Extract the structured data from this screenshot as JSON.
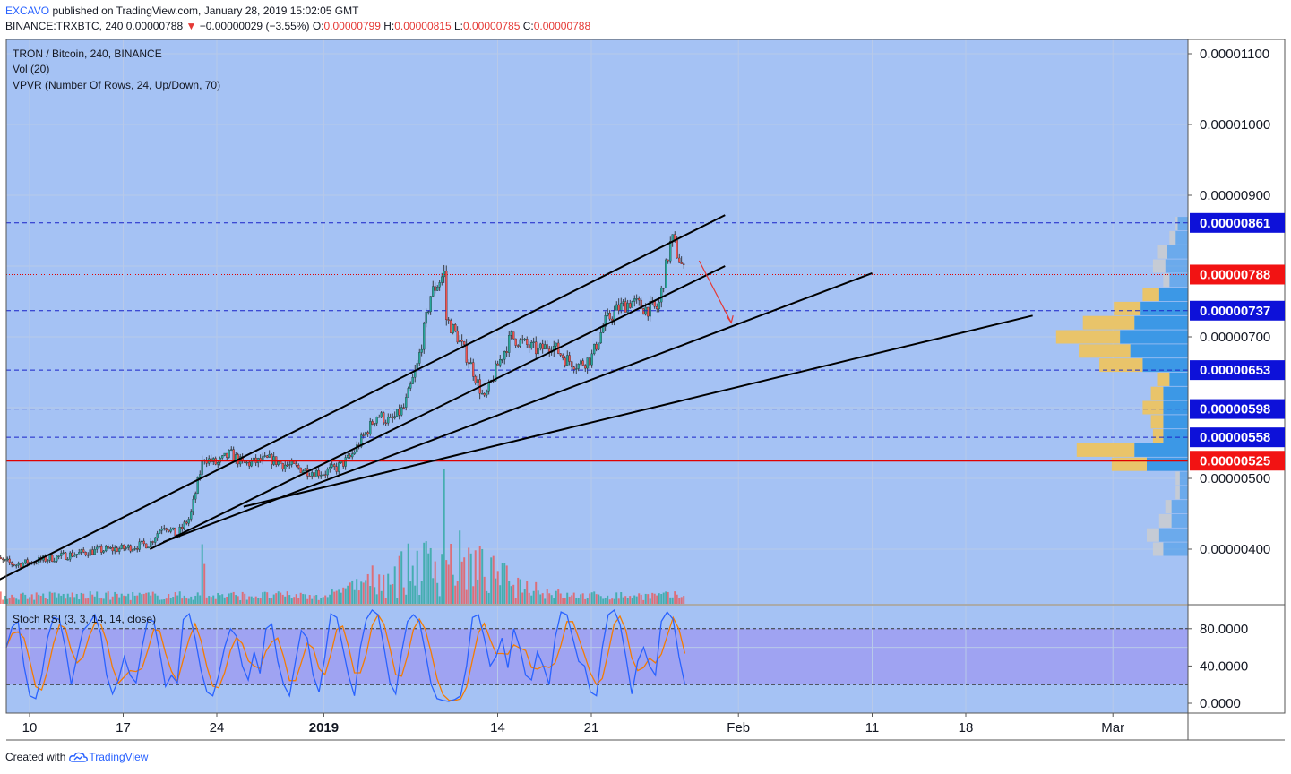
{
  "header": {
    "user": "EXCAVO",
    "published_text": "published on TradingView.com, January 28, 2019 15:02:05 GMT",
    "symbol": "BINANCE:TRXBTC, 240",
    "last": "0.00000788",
    "change": "−0.00000029 (−3.55%)",
    "o_label": "O:",
    "o": "0.00000799",
    "h_label": "H:",
    "h": "0.00000815",
    "l_label": "L:",
    "l": "0.00000785",
    "c_label": "C:",
    "c": "0.00000788"
  },
  "legend": {
    "title": "TRON / Bitcoin, 240, BINANCE",
    "vol": "Vol (20)",
    "vpvr": "VPVR (Number Of Rows, 24, Up/Down, 70)",
    "stoch": "Stoch RSI (3, 3, 14, 14, close)"
  },
  "footer": {
    "created": "Created with",
    "brand": "TradingView"
  },
  "colors": {
    "background": "#a5c2f4",
    "rsi_band": "#9d9ef1",
    "up": "#26a69a",
    "down": "#ef5350",
    "support_line": "#e00000",
    "level_line": "#1a23c8",
    "trend_line": "#000000",
    "badge_blue": "#0d11d9",
    "badge_red": "#f21313",
    "vpvr_up": "#3c98e6",
    "vpvr_down": "#e9c46a",
    "vpvr_inactive": "#c9ccd1",
    "k_line": "#2962ff",
    "d_line": "#f57c00"
  },
  "chart_data": {
    "type": "candlestick",
    "price_axis": {
      "ticks": [
        {
          "value": 1.1e-05,
          "label": "0.00001100"
        },
        {
          "value": 1e-05,
          "label": "0.00001000"
        },
        {
          "value": 9e-06,
          "label": "0.00000900"
        },
        {
          "value": 7e-06,
          "label": "0.00000700"
        },
        {
          "value": 5e-06,
          "label": "0.00000500"
        },
        {
          "value": 4e-06,
          "label": "0.00000400"
        }
      ]
    },
    "time_axis": {
      "ticks": [
        {
          "date": "2018-12-10",
          "label": "10"
        },
        {
          "date": "2018-12-17",
          "label": "17"
        },
        {
          "date": "2018-12-24",
          "label": "24"
        },
        {
          "date": "2019-01-01",
          "label": "2019",
          "bold": true
        },
        {
          "date": "2019-01-14",
          "label": "14"
        },
        {
          "date": "2019-01-21",
          "label": "21"
        },
        {
          "date": "2019-02-01",
          "label": "Feb"
        },
        {
          "date": "2019-02-11",
          "label": "11"
        },
        {
          "date": "2019-02-18",
          "label": "18"
        },
        {
          "date": "2019-03-01",
          "label": "Mar"
        }
      ]
    },
    "levels": [
      {
        "value": 8.61e-06,
        "label": "0.00000861",
        "style": "dashed",
        "badge": "blue"
      },
      {
        "value": 7.37e-06,
        "label": "0.00000737",
        "style": "dashed",
        "badge": "blue"
      },
      {
        "value": 6.53e-06,
        "label": "0.00000653",
        "style": "dashed",
        "badge": "blue"
      },
      {
        "value": 5.98e-06,
        "label": "0.00000598",
        "style": "dashed",
        "badge": "blue"
      },
      {
        "value": 5.58e-06,
        "label": "0.00000558",
        "style": "dashed",
        "badge": "blue"
      },
      {
        "value": 5.25e-06,
        "label": "0.00000525",
        "style": "solid",
        "badge": "red"
      },
      {
        "value": 7.88e-06,
        "label": "0.00000788",
        "style": "dotted",
        "badge": "red"
      }
    ],
    "trendlines": [
      {
        "from": [
          "2018-12-07",
          3.5e-06
        ],
        "to": [
          "2019-01-31",
          8.72e-06
        ]
      },
      {
        "from": [
          "2018-12-19",
          4e-06
        ],
        "to": [
          "2019-01-31",
          8e-06
        ]
      },
      {
        "from": [
          "2018-12-20",
          4.1e-06
        ],
        "to": [
          "2019-02-11",
          7.9e-06
        ]
      },
      {
        "from": [
          "2018-12-26",
          4.6e-06
        ],
        "to": [
          "2019-02-23",
          7.3e-06
        ]
      }
    ],
    "arrow": {
      "from": [
        "2019-01-30",
        8e-06
      ],
      "to": [
        "2019-02-01",
        7.2e-06
      ]
    },
    "close_path": [
      [
        "2018-12-07",
        3.88e-06
      ],
      [
        "2018-12-09",
        3.78e-06
      ],
      [
        "2018-12-11",
        3.85e-06
      ],
      [
        "2018-12-13",
        3.92e-06
      ],
      [
        "2018-12-15",
        3.98e-06
      ],
      [
        "2018-12-17",
        4.01e-06
      ],
      [
        "2018-12-19",
        4.08e-06
      ],
      [
        "2018-12-20",
        4.35e-06
      ],
      [
        "2018-12-21",
        4.2e-06
      ],
      [
        "2018-12-22",
        4.45e-06
      ],
      [
        "2018-12-23",
        5.3e-06
      ],
      [
        "2018-12-24",
        5.2e-06
      ],
      [
        "2018-12-25",
        5.35e-06
      ],
      [
        "2018-12-26",
        5.2e-06
      ],
      [
        "2018-12-28",
        5.27e-06
      ],
      [
        "2018-12-29",
        5.2e-06
      ],
      [
        "2018-12-31",
        5.1e-06
      ],
      [
        "2019-01-01",
        5.08e-06
      ],
      [
        "2019-01-02",
        5.15e-06
      ],
      [
        "2019-01-03",
        5.3e-06
      ],
      [
        "2019-01-04",
        5.6e-06
      ],
      [
        "2019-01-05",
        5.9e-06
      ],
      [
        "2019-01-06",
        5.8e-06
      ],
      [
        "2019-01-07",
        6e-06
      ],
      [
        "2019-01-08",
        6.6e-06
      ],
      [
        "2019-01-09",
        7.6e-06
      ],
      [
        "2019-01-10",
        7.9e-06
      ],
      [
        "2019-01-10",
        7.3e-06
      ],
      [
        "2019-01-11",
        7e-06
      ],
      [
        "2019-01-12",
        6.6e-06
      ],
      [
        "2019-01-13",
        6.1e-06
      ],
      [
        "2019-01-14",
        6.6e-06
      ],
      [
        "2019-01-15",
        7e-06
      ],
      [
        "2019-01-16",
        6.9e-06
      ],
      [
        "2019-01-17",
        6.8e-06
      ],
      [
        "2019-01-18",
        6.9e-06
      ],
      [
        "2019-01-19",
        6.7e-06
      ],
      [
        "2019-01-20",
        6.6e-06
      ],
      [
        "2019-01-21",
        6.7e-06
      ],
      [
        "2019-01-22",
        7.2e-06
      ],
      [
        "2019-01-23",
        7.4e-06
      ],
      [
        "2019-01-24",
        7.5e-06
      ],
      [
        "2019-01-25",
        7.4e-06
      ],
      [
        "2019-01-26",
        7.4e-06
      ],
      [
        "2019-01-27",
        8.4e-06
      ],
      [
        "2019-01-28",
        7.88e-06
      ]
    ],
    "volume": {
      "peak_date": "2019-01-10",
      "peak_relative": 1.0
    },
    "vpvr_rows": [
      {
        "price": 8.6e-06,
        "up": 0.05,
        "down": 0.01
      },
      {
        "price": 8.4e-06,
        "up": 0.06,
        "down": 0.03
      },
      {
        "price": 8.2e-06,
        "up": 0.1,
        "down": 0.05
      },
      {
        "price": 8e-06,
        "up": 0.11,
        "down": 0.06
      },
      {
        "price": 7.8e-06,
        "up": 0.09,
        "down": 0.03
      },
      {
        "price": 7.6e-06,
        "up": 0.14,
        "down": 0.08
      },
      {
        "price": 7.4e-06,
        "up": 0.23,
        "down": 0.13
      },
      {
        "price": 7.2e-06,
        "up": 0.26,
        "down": 0.25
      },
      {
        "price": 7e-06,
        "up": 0.33,
        "down": 0.31
      },
      {
        "price": 6.8e-06,
        "up": 0.28,
        "down": 0.25
      },
      {
        "price": 6.6e-06,
        "up": 0.22,
        "down": 0.21
      },
      {
        "price": 6.4e-06,
        "up": 0.09,
        "down": 0.06
      },
      {
        "price": 6.2e-06,
        "up": 0.12,
        "down": 0.06
      },
      {
        "price": 6e-06,
        "up": 0.12,
        "down": 0.1
      },
      {
        "price": 5.8e-06,
        "up": 0.12,
        "down": 0.06
      },
      {
        "price": 5.6e-06,
        "up": 0.12,
        "down": 0.05
      },
      {
        "price": 5.4e-06,
        "up": 0.26,
        "down": 0.28
      },
      {
        "price": 5.2e-06,
        "up": 0.2,
        "down": 0.17
      },
      {
        "price": 5e-06,
        "up": 0.04,
        "down": 0.02
      },
      {
        "price": 4.8e-06,
        "up": 0.04,
        "down": 0.02
      },
      {
        "price": 4.6e-06,
        "up": 0.08,
        "down": 0.03
      },
      {
        "price": 4.4e-06,
        "up": 0.08,
        "down": 0.06
      },
      {
        "price": 4.2e-06,
        "up": 0.14,
        "down": 0.06
      },
      {
        "price": 4e-06,
        "up": 0.12,
        "down": 0.05
      }
    ],
    "stoch_rsi": {
      "ticks": [
        {
          "value": 80,
          "label": "80.0000"
        },
        {
          "value": 40,
          "label": "40.0000"
        },
        {
          "value": 0,
          "label": "0.0000"
        }
      ],
      "band": [
        20,
        80
      ],
      "k": [
        60,
        82,
        88,
        40,
        8,
        5,
        30,
        70,
        92,
        90,
        60,
        20,
        50,
        78,
        85,
        95,
        75,
        30,
        10,
        25,
        50,
        30,
        22,
        60,
        90,
        88,
        55,
        18,
        30,
        22,
        90,
        96,
        70,
        35,
        12,
        8,
        30,
        60,
        80,
        72,
        40,
        25,
        55,
        32,
        80,
        85,
        45,
        20,
        8,
        45,
        78,
        70,
        30,
        12,
        50,
        96,
        92,
        60,
        30,
        8,
        60,
        90,
        100,
        95,
        60,
        22,
        10,
        55,
        88,
        95,
        88,
        55,
        20,
        5,
        3,
        2,
        4,
        8,
        40,
        92,
        95,
        70,
        40,
        50,
        70,
        38,
        80,
        60,
        30,
        25,
        55,
        40,
        20,
        70,
        98,
        95,
        70,
        45,
        40,
        12,
        8,
        60,
        95,
        100,
        85,
        50,
        10,
        45,
        60,
        40,
        30,
        88,
        98,
        90,
        50,
        20
      ]
    }
  }
}
